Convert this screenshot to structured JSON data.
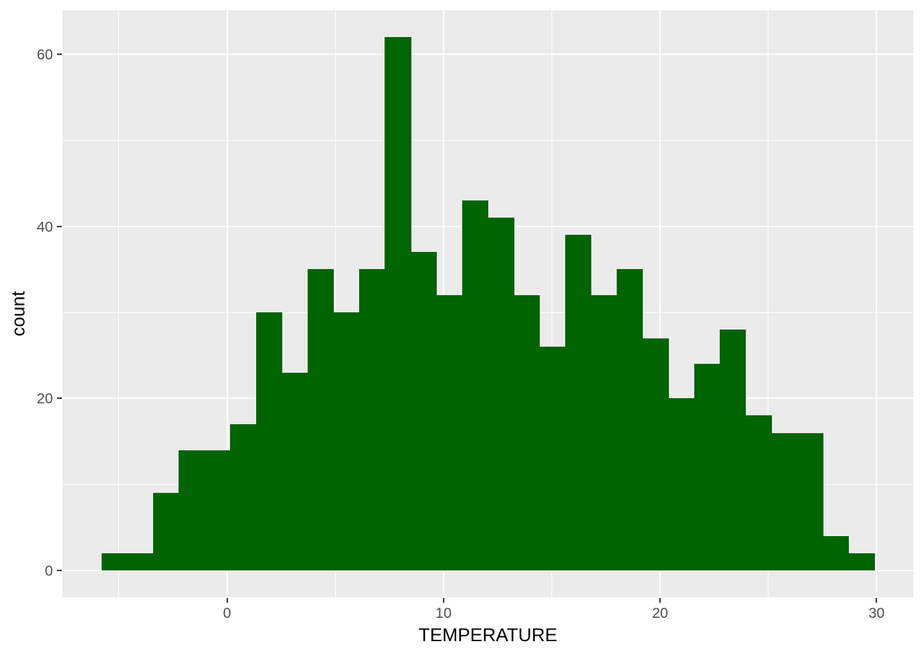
{
  "chart_data": {
    "type": "bar",
    "subtype": "histogram",
    "title": "",
    "xlabel": "TEMPERATURE",
    "ylabel": "count",
    "bins": {
      "start": -5.8,
      "width": 1.19,
      "counts": [
        2,
        2,
        9,
        14,
        14,
        17,
        30,
        23,
        35,
        30,
        35,
        62,
        37,
        32,
        43,
        41,
        32,
        26,
        39,
        32,
        35,
        27,
        20,
        24,
        28,
        18,
        16,
        16,
        4,
        2
      ]
    },
    "x_ticks": [
      0,
      10,
      20,
      30
    ],
    "y_ticks": [
      0,
      20,
      40,
      60
    ],
    "x_minor_gridlines": [
      -5,
      5,
      15,
      25
    ],
    "y_minor_gridlines": [
      10,
      30,
      50
    ],
    "xlim": [
      -7.6,
      31.7
    ],
    "ylim": [
      -3.1,
      65.1
    ],
    "legend_position": "none",
    "grid": "on",
    "colors": {
      "bar_fill": "#006400",
      "panel_background": "#EBEBEB",
      "gridline": "#FFFFFF",
      "tick_mark": "#333333",
      "tick_label": "#4D4D4D",
      "axis_title": "#000000",
      "figure_background": "#FFFFFF"
    }
  }
}
